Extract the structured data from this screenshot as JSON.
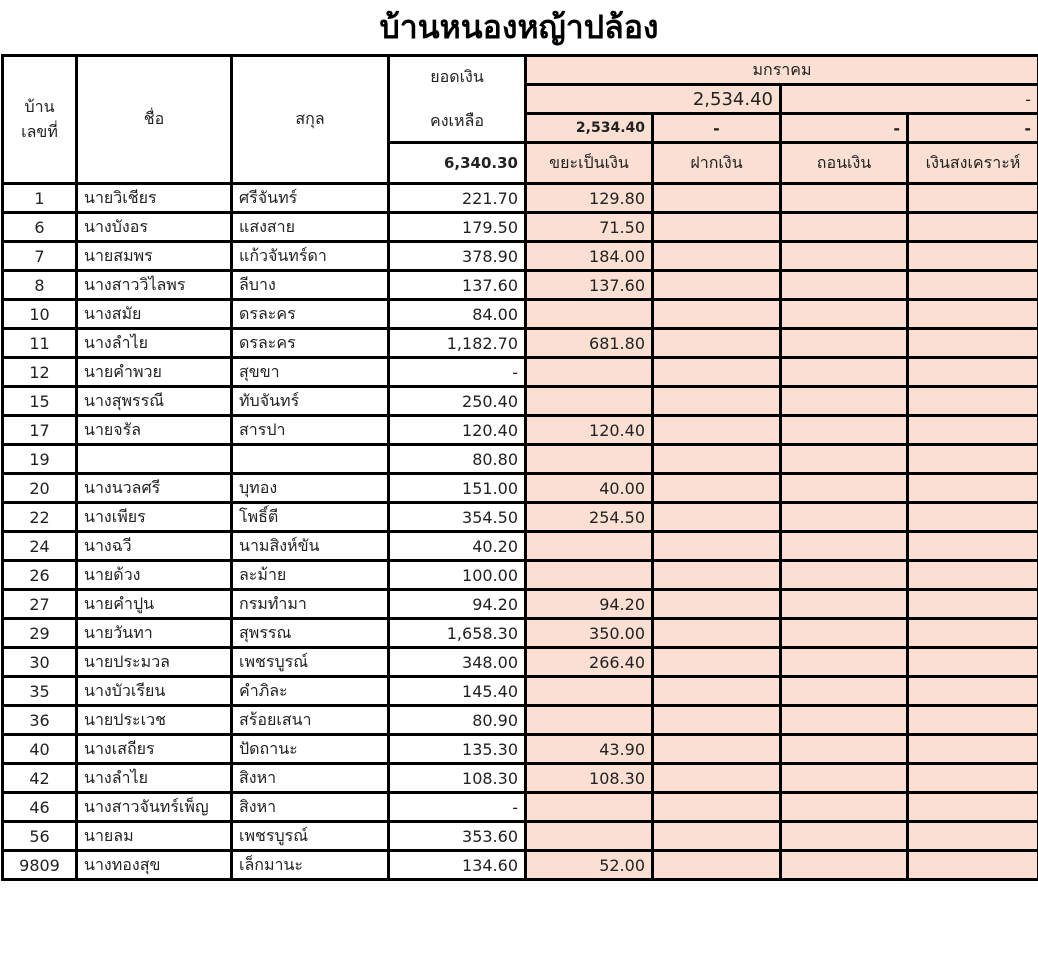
{
  "title": "บ้านหนองหญ้าปล้อง",
  "header": {
    "house_no": "บ้าน\nเลขที่",
    "house_no_line1": "บ้าน",
    "house_no_line2": "เลขที่",
    "name": "ชื่อ",
    "surname": "สกุล",
    "balance_line1": "ยอดเงิน",
    "balance_line2": "คงเหลือ",
    "balance_total": "6,340.30",
    "month": "มกราคม",
    "month_total": "2,534.40",
    "month_total_right": "-",
    "sub_totals": [
      "2,534.40",
      "-",
      "-",
      "-"
    ],
    "columns": [
      "ขยะเป็นเงิน",
      "ฝากเงิน",
      "ถอนเงิน",
      "เงินสงเคราะห์"
    ]
  },
  "colors": {
    "accent_fill": "#fadfd2",
    "border": "#000000"
  },
  "rows": [
    {
      "no": "1",
      "name": "นายวิเชียร",
      "surname": "ศรีจันทร์",
      "balance": "221.70",
      "waste": "129.80"
    },
    {
      "no": "6",
      "name": "นางบังอร",
      "surname": "แสงสาย",
      "balance": "179.50",
      "waste": "71.50"
    },
    {
      "no": "7",
      "name": "นายสมพร",
      "surname": "แก้วจันทร์ดา",
      "balance": "378.90",
      "waste": "184.00"
    },
    {
      "no": "8",
      "name": "นางสาววิไลพร",
      "surname": "ลีบาง",
      "balance": "137.60",
      "waste": "137.60"
    },
    {
      "no": "10",
      "name": "นางสมัย",
      "surname": "ดรละคร",
      "balance": "84.00",
      "waste": ""
    },
    {
      "no": "11",
      "name": "นางลำไย",
      "surname": "ดรละคร",
      "balance": "1,182.70",
      "waste": "681.80"
    },
    {
      "no": "12",
      "name": "นายคำพวย",
      "surname": "สุขขา",
      "balance": "-",
      "waste": ""
    },
    {
      "no": "15",
      "name": "นางสุพรรณี",
      "surname": "ทับจันทร์",
      "balance": "250.40",
      "waste": ""
    },
    {
      "no": "17",
      "name": "นายจรัล",
      "surname": "สารปา",
      "balance": "120.40",
      "waste": "120.40"
    },
    {
      "no": "19",
      "name": "",
      "surname": "",
      "balance": "80.80",
      "waste": ""
    },
    {
      "no": "20",
      "name": "นางนวลศรี",
      "surname": "บุทอง",
      "balance": "151.00",
      "waste": "40.00"
    },
    {
      "no": "22",
      "name": "นางเพียร",
      "surname": "โพธิ์ตี",
      "balance": "354.50",
      "waste": "254.50"
    },
    {
      "no": "24",
      "name": "นางฉวี",
      "surname": "นามสิงห์ขัน",
      "balance": "40.20",
      "waste": ""
    },
    {
      "no": "26",
      "name": "นายด้วง",
      "surname": "ละม้าย",
      "balance": "100.00",
      "waste": ""
    },
    {
      "no": "27",
      "name": "นายคำปูน",
      "surname": "กรมทำมา",
      "balance": "94.20",
      "waste": "94.20"
    },
    {
      "no": "29",
      "name": "นายวันทา",
      "surname": "สุพรรณ",
      "balance": "1,658.30",
      "waste": "350.00"
    },
    {
      "no": "30",
      "name": "นายประมวล",
      "surname": "เพชรบูรณ์",
      "balance": "348.00",
      "waste": "266.40"
    },
    {
      "no": "35",
      "name": "นางบัวเรียน",
      "surname": "คำภิละ",
      "balance": "145.40",
      "waste": ""
    },
    {
      "no": "36",
      "name": "นายประเวช",
      "surname": "สร้อยเสนา",
      "balance": "80.90",
      "waste": ""
    },
    {
      "no": "40",
      "name": "นางเสถียร",
      "surname": "ปัดถานะ",
      "balance": "135.30",
      "waste": "43.90"
    },
    {
      "no": "42",
      "name": "นางลำไย",
      "surname": "สิงหา",
      "balance": "108.30",
      "waste": "108.30"
    },
    {
      "no": "46",
      "name": "นางสาวจันทร์เพ็ญ",
      "surname": "สิงหา",
      "balance": "-",
      "waste": ""
    },
    {
      "no": "56",
      "name": "นายลม",
      "surname": "เพชรบูรณ์",
      "balance": "353.60",
      "waste": ""
    },
    {
      "no": "9809",
      "name": "นางทองสุข",
      "surname": "เล็กมานะ",
      "balance": "134.60",
      "waste": "52.00"
    }
  ]
}
